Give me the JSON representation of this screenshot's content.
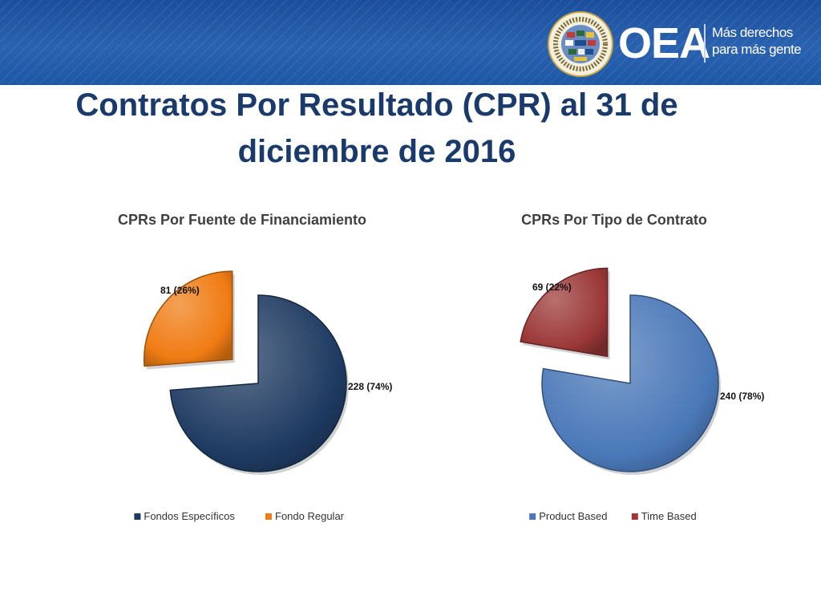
{
  "header": {
    "org_name": "OEA",
    "tagline_line1": "Más derechos",
    "tagline_line2": "para más gente"
  },
  "slide": {
    "title_line1": "Contratos Por Resultado (CPR) al 31 de",
    "title_line2": "diciembre de 2016"
  },
  "colors": {
    "banner": "#1f56a3",
    "title": "#1a3a6b",
    "fondos_especificos": "#1e3a61",
    "fondo_regular": "#f07c14",
    "product_based": "#4a78b8",
    "time_based": "#9c3838"
  },
  "chart_data": [
    {
      "type": "pie",
      "title": "CPRs Por Fuente de Financiamiento",
      "slices": [
        {
          "name": "Fondos Específicos",
          "value": 228,
          "percent": 74,
          "label": "228  (74%)",
          "color": "#1e3a61",
          "exploded": false
        },
        {
          "name": "Fondo Regular",
          "value": 81,
          "percent": 26,
          "label": "81  (26%)",
          "color": "#f07c14",
          "exploded": true
        }
      ],
      "legend": {
        "position": "bottom",
        "entries": [
          "Fondos Específicos",
          "Fondo Regular"
        ]
      }
    },
    {
      "type": "pie",
      "title": "CPRs Por Tipo de Contrato",
      "slices": [
        {
          "name": "Product Based",
          "value": 240,
          "percent": 78,
          "label": "240  (78%)",
          "color": "#4a78b8",
          "exploded": false
        },
        {
          "name": "Time Based",
          "value": 69,
          "percent": 22,
          "label": "69  (22%)",
          "color": "#9c3838",
          "exploded": true
        }
      ],
      "legend": {
        "position": "bottom",
        "entries": [
          "Product Based",
          "Time Based"
        ]
      }
    }
  ]
}
